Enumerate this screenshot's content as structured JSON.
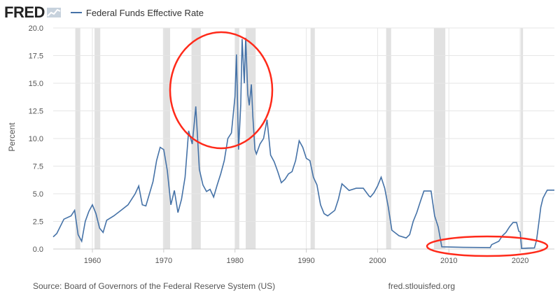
{
  "header": {
    "logo_text": "FRED",
    "logo_mark": "chart-mark-icon"
  },
  "footer": {
    "source": "Source: Board of Governors of the Federal Reserve System (US)",
    "site": "fred.stlouisfed.org"
  },
  "colors": {
    "series": "#4572a7",
    "recession": "#e1e1e1",
    "annotation": "#ff2a1a",
    "grid": "#e6e6e6"
  },
  "chart_data": {
    "type": "line",
    "title": "",
    "xlabel": "",
    "ylabel": "Percent",
    "xlim": [
      1954.5,
      2024.8
    ],
    "ylim": [
      0,
      20
    ],
    "grid": true,
    "legend": "top-left",
    "x_ticks": [
      "1960",
      "1970",
      "1980",
      "1990",
      "2000",
      "2010",
      "2020"
    ],
    "x_tick_values": [
      1960,
      1970,
      1980,
      1990,
      2000,
      2010,
      2020
    ],
    "y_ticks": [
      "0.0",
      "2.5",
      "5.0",
      "7.5",
      "10.0",
      "12.5",
      "15.0",
      "17.5",
      "20.0"
    ],
    "y_tick_values": [
      0,
      2.5,
      5,
      7.5,
      10,
      12.5,
      15,
      17.5,
      20
    ],
    "recessions": [
      [
        1957.6,
        1958.3
      ],
      [
        1960.3,
        1961.1
      ],
      [
        1969.9,
        1970.9
      ],
      [
        1973.9,
        1975.2
      ],
      [
        1980.0,
        1980.6
      ],
      [
        1981.5,
        1982.9
      ],
      [
        1990.6,
        1991.2
      ],
      [
        2001.2,
        2001.9
      ],
      [
        2007.9,
        2009.5
      ],
      [
        2020.1,
        2020.4
      ]
    ],
    "series": [
      {
        "name": "Federal Funds Effective Rate",
        "points": [
          [
            1954.5,
            1.1
          ],
          [
            1955.0,
            1.4
          ],
          [
            1956.0,
            2.7
          ],
          [
            1957.0,
            3.0
          ],
          [
            1957.5,
            3.5
          ],
          [
            1958.0,
            1.3
          ],
          [
            1958.5,
            0.7
          ],
          [
            1959.0,
            2.5
          ],
          [
            1959.5,
            3.4
          ],
          [
            1960.0,
            4.0
          ],
          [
            1960.5,
            3.2
          ],
          [
            1961.0,
            1.9
          ],
          [
            1961.5,
            1.5
          ],
          [
            1962.0,
            2.6
          ],
          [
            1963.0,
            3.0
          ],
          [
            1964.0,
            3.5
          ],
          [
            1965.0,
            4.0
          ],
          [
            1966.0,
            5.0
          ],
          [
            1966.5,
            5.7
          ],
          [
            1967.0,
            4.0
          ],
          [
            1967.5,
            3.9
          ],
          [
            1968.0,
            5.0
          ],
          [
            1968.5,
            6.1
          ],
          [
            1969.0,
            8.0
          ],
          [
            1969.5,
            9.2
          ],
          [
            1970.0,
            9.0
          ],
          [
            1970.5,
            7.1
          ],
          [
            1971.0,
            4.0
          ],
          [
            1971.5,
            5.3
          ],
          [
            1972.0,
            3.3
          ],
          [
            1972.5,
            4.5
          ],
          [
            1973.0,
            6.5
          ],
          [
            1973.5,
            10.7
          ],
          [
            1974.0,
            9.5
          ],
          [
            1974.3,
            11.5
          ],
          [
            1974.5,
            12.9
          ],
          [
            1975.0,
            7.2
          ],
          [
            1975.5,
            5.8
          ],
          [
            1976.0,
            5.2
          ],
          [
            1976.5,
            5.4
          ],
          [
            1977.0,
            4.7
          ],
          [
            1977.5,
            5.8
          ],
          [
            1978.0,
            6.8
          ],
          [
            1978.5,
            8.0
          ],
          [
            1979.0,
            10.0
          ],
          [
            1979.5,
            10.5
          ],
          [
            1980.0,
            13.8
          ],
          [
            1980.2,
            17.6
          ],
          [
            1980.5,
            9.0
          ],
          [
            1980.8,
            13.0
          ],
          [
            1981.0,
            19.0
          ],
          [
            1981.3,
            15.0
          ],
          [
            1981.5,
            19.1
          ],
          [
            1981.8,
            14.0
          ],
          [
            1982.0,
            13.0
          ],
          [
            1982.3,
            14.9
          ],
          [
            1982.5,
            12.0
          ],
          [
            1982.8,
            9.0
          ],
          [
            1983.0,
            8.6
          ],
          [
            1983.5,
            9.5
          ],
          [
            1984.0,
            10.0
          ],
          [
            1984.5,
            11.7
          ],
          [
            1985.0,
            8.5
          ],
          [
            1985.5,
            7.9
          ],
          [
            1986.0,
            7.0
          ],
          [
            1986.5,
            6.0
          ],
          [
            1987.0,
            6.3
          ],
          [
            1987.5,
            6.8
          ],
          [
            1988.0,
            7.0
          ],
          [
            1988.5,
            8.0
          ],
          [
            1989.0,
            9.8
          ],
          [
            1989.5,
            9.2
          ],
          [
            1990.0,
            8.2
          ],
          [
            1990.5,
            8.0
          ],
          [
            1991.0,
            6.5
          ],
          [
            1991.5,
            5.8
          ],
          [
            1992.0,
            4.0
          ],
          [
            1992.5,
            3.2
          ],
          [
            1993.0,
            3.0
          ],
          [
            1994.0,
            3.5
          ],
          [
            1994.5,
            4.5
          ],
          [
            1995.0,
            5.9
          ],
          [
            1995.5,
            5.6
          ],
          [
            1996.0,
            5.3
          ],
          [
            1997.0,
            5.5
          ],
          [
            1998.0,
            5.5
          ],
          [
            1998.8,
            4.8
          ],
          [
            1999.0,
            4.7
          ],
          [
            1999.5,
            5.1
          ],
          [
            2000.0,
            5.7
          ],
          [
            2000.5,
            6.5
          ],
          [
            2001.0,
            5.5
          ],
          [
            2001.5,
            3.8
          ],
          [
            2002.0,
            1.7
          ],
          [
            2003.0,
            1.2
          ],
          [
            2004.0,
            1.0
          ],
          [
            2004.5,
            1.3
          ],
          [
            2005.0,
            2.5
          ],
          [
            2005.5,
            3.3
          ],
          [
            2006.0,
            4.3
          ],
          [
            2006.5,
            5.25
          ],
          [
            2007.5,
            5.25
          ],
          [
            2008.0,
            3.0
          ],
          [
            2008.5,
            2.0
          ],
          [
            2009.0,
            0.2
          ],
          [
            2012.0,
            0.15
          ],
          [
            2015.8,
            0.13
          ],
          [
            2016.0,
            0.4
          ],
          [
            2017.0,
            0.7
          ],
          [
            2017.5,
            1.2
          ],
          [
            2018.0,
            1.5
          ],
          [
            2018.5,
            2.0
          ],
          [
            2019.0,
            2.4
          ],
          [
            2019.5,
            2.4
          ],
          [
            2019.8,
            1.6
          ],
          [
            2020.0,
            1.55
          ],
          [
            2020.2,
            0.05
          ],
          [
            2021.0,
            0.08
          ],
          [
            2022.0,
            0.1
          ],
          [
            2022.3,
            0.8
          ],
          [
            2022.6,
            2.3
          ],
          [
            2022.9,
            3.8
          ],
          [
            2023.2,
            4.6
          ],
          [
            2023.6,
            5.1
          ],
          [
            2023.8,
            5.33
          ],
          [
            2024.8,
            5.33
          ]
        ]
      }
    ]
  }
}
